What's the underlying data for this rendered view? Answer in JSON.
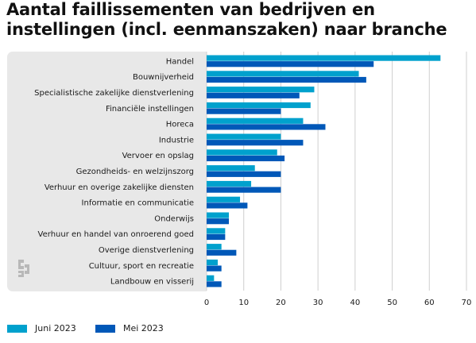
{
  "chart_data": {
    "type": "bar",
    "orientation": "horizontal",
    "title": [
      "Aantal faillissementen van bedrijven en",
      "instellingen (incl. eenmanszaken) naar branche"
    ],
    "categories": [
      "Handel",
      "Bouwnijverheid",
      "Specialistische zakelijke dienstverlening",
      "Financiële instellingen",
      "Horeca",
      "Industrie",
      "Vervoer en opslag",
      "Gezondheids- en welzijnszorg",
      "Verhuur en overige zakelijke diensten",
      "Informatie en communicatie",
      "Onderwijs",
      "Verhuur en handel van onroerend goed",
      "Overige dienstverlening",
      "Cultuur, sport en recreatie",
      "Landbouw en visserij"
    ],
    "series": [
      {
        "name": "Juni 2023",
        "color": "#00a1cd",
        "values": [
          63,
          41,
          29,
          28,
          26,
          20,
          19,
          13,
          12,
          9,
          6,
          5,
          4,
          3,
          2
        ]
      },
      {
        "name": "Mei 2023",
        "color": "#0058b8",
        "values": [
          45,
          43,
          25,
          20,
          32,
          26,
          21,
          20,
          20,
          11,
          6,
          5,
          8,
          4,
          4
        ]
      }
    ],
    "xlim": [
      0,
      70
    ],
    "xticks": [
      0,
      10,
      20,
      30,
      40,
      50,
      60,
      70
    ],
    "grid": true,
    "legend": "bottom-left"
  },
  "logo": {
    "icon": "cbs-logo-icon"
  }
}
